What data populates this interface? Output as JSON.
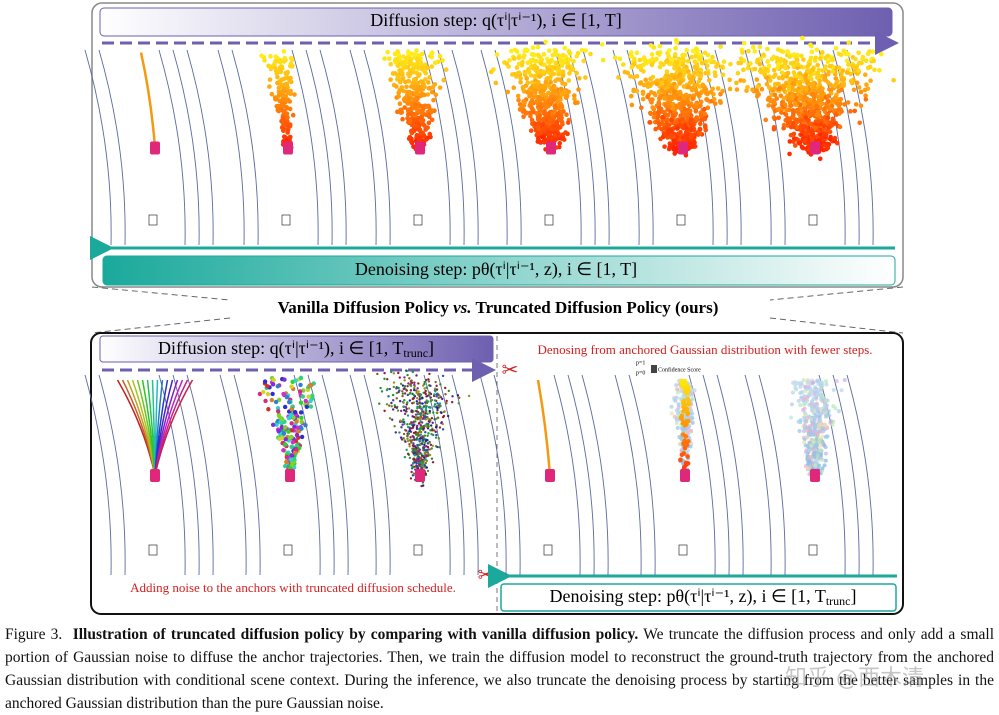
{
  "top_panel": {
    "diffusion_label": "Diffusion step: q(τⁱ|τⁱ⁻¹), i ∈ [1, T]",
    "denoising_label": "Denoising step: pθ(τⁱ|τⁱ⁻¹, z), i ∈ [1, T]"
  },
  "comparison_title": {
    "left": "Vanilla Diffusion Policy ",
    "vs": "vs.",
    "right": " Truncated Diffusion Policy (ours)"
  },
  "bottom_panel": {
    "diffusion_label": "Diffusion step: q(τⁱ|τⁱ⁻¹), i ∈ [1, T",
    "diffusion_sub": "trunc",
    "diffusion_end": "]",
    "denoising_label": "Denoising step: pθ(τⁱ|τⁱ⁻¹, z), i ∈ [1, T",
    "denoising_sub": "trunc",
    "denoising_end": "]",
    "denoising_note": "Denosing from anchored Gaussian distribution with fewer steps.",
    "noise_note": "Adding noise to the anchors with truncated diffusion schedule.",
    "legend": {
      "high": "p=1",
      "low": "p=0",
      "label": "Confidence Score"
    }
  },
  "caption": {
    "number": "Figure 3.",
    "bold": "Illustration of truncated diffusion policy by comparing with vanilla diffusion policy.",
    "text": "We truncate the diffusion process and only add a small portion of Gaussian noise to diffuse the anchor trajectories. Then, we train the diffusion model to reconstruct the ground-truth trajectory from the anchored Gaussian distribution with conditional scene context. During the inference, we also truncate the denoising process by starting from the better samples in the anchored Gaussian distribution than the pure Gaussian noise."
  },
  "watermark": "知乎 @西木清"
}
